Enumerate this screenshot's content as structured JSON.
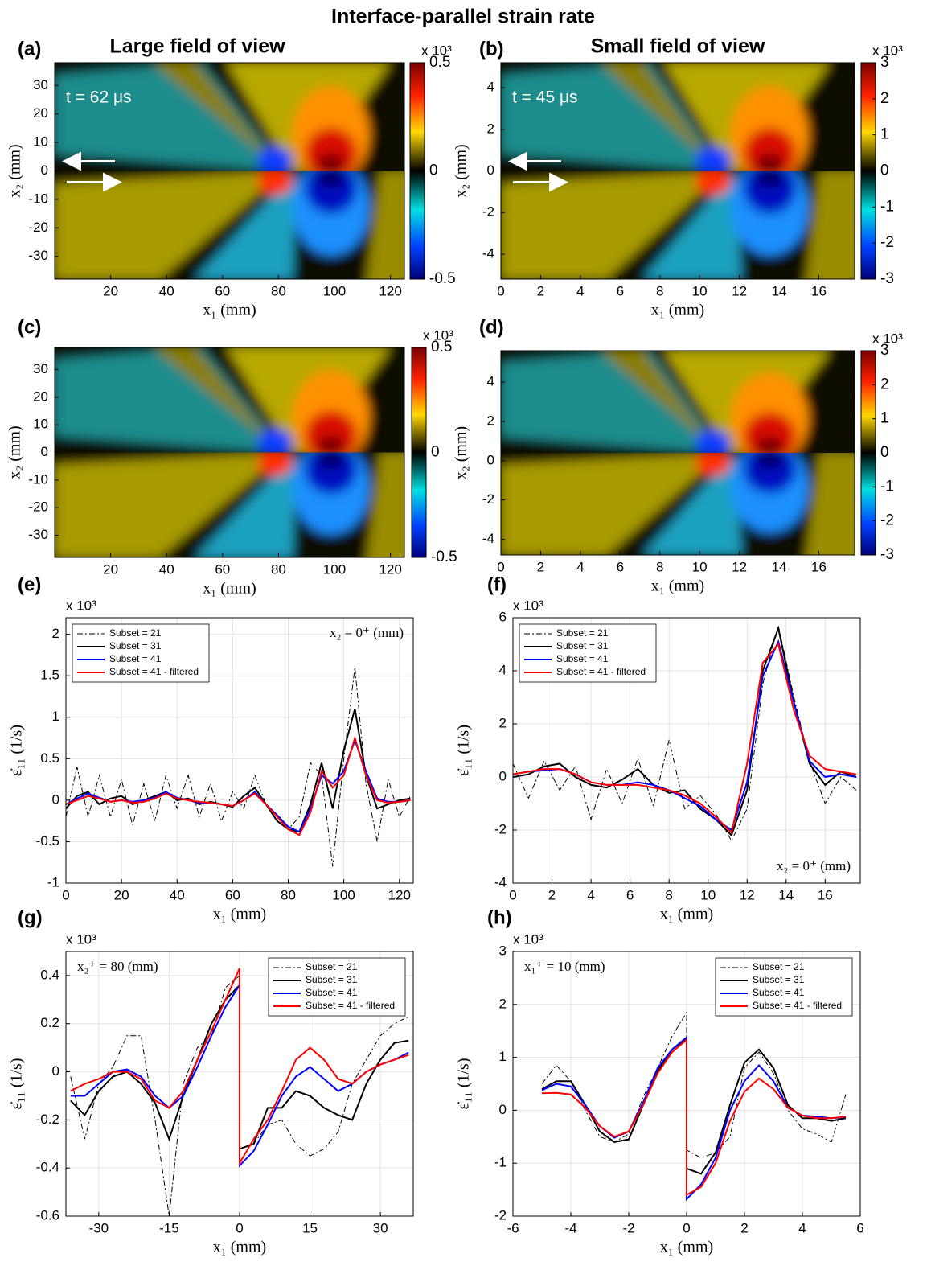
{
  "title": "Interface-parallel strain rate",
  "chart_data": [
    {
      "type": "heatmap",
      "panel": "(a)",
      "title": "Large field of view",
      "annotation": "t = 62 μs",
      "xlabel": "x₁ (mm)",
      "ylabel": "x₂ (mm)",
      "xlim": [
        0,
        125
      ],
      "xticks": [
        20,
        40,
        60,
        80,
        100,
        120
      ],
      "ylim": [
        -38,
        38
      ],
      "yticks": [
        -30,
        -20,
        -10,
        0,
        10,
        20,
        30
      ],
      "colorbar": {
        "lim": [
          -0.5,
          0.5
        ],
        "ticks": [
          -0.5,
          0,
          0.5
        ],
        "multiplier": "x 10³"
      }
    },
    {
      "type": "heatmap",
      "panel": "(b)",
      "title": "Small field of view",
      "annotation": "t = 45 μs",
      "xlabel": "x₁ (mm)",
      "ylabel": "x₂ (mm)",
      "xlim": [
        0,
        17.8
      ],
      "xticks": [
        0,
        2,
        4,
        6,
        8,
        10,
        12,
        14,
        16
      ],
      "ylim": [
        -5.2,
        5.2
      ],
      "yticks": [
        -4,
        -2,
        0,
        2,
        4
      ],
      "colorbar": {
        "lim": [
          -3,
          3
        ],
        "ticks": [
          -3,
          -2,
          -1,
          0,
          1,
          2,
          3
        ],
        "multiplier": "x 10³"
      }
    },
    {
      "type": "heatmap",
      "panel": "(c)",
      "xlabel": "x₁ (mm)",
      "ylabel": "x₂ (mm)",
      "xlim": [
        0,
        125
      ],
      "xticks": [
        20,
        40,
        60,
        80,
        100,
        120
      ],
      "ylim": [
        -38,
        38
      ],
      "yticks": [
        -30,
        -20,
        -10,
        0,
        10,
        20,
        30
      ],
      "colorbar": {
        "lim": [
          -0.5,
          0.5
        ],
        "ticks": [
          -0.5,
          0,
          0.5
        ],
        "multiplier": "x 10³"
      }
    },
    {
      "type": "heatmap",
      "panel": "(d)",
      "xlabel": "x₁ (mm)",
      "ylabel": "x₂ (mm)",
      "xlim": [
        0,
        17.8
      ],
      "xticks": [
        0,
        2,
        4,
        6,
        8,
        10,
        12,
        14,
        16
      ],
      "ylim": [
        -4.8,
        5.6
      ],
      "yticks": [
        -4,
        -2,
        0,
        2,
        4
      ],
      "colorbar": {
        "lim": [
          -3,
          3
        ],
        "ticks": [
          -3,
          -2,
          -1,
          0,
          1,
          2,
          3
        ],
        "multiplier": "x 10³"
      }
    },
    {
      "type": "line",
      "panel": "(e)",
      "xlabel": "x₁ (mm)",
      "ylabel": "ε̇₁₁ (1/s)",
      "y_multiplier": "x 10³",
      "annotation": "x₂ = 0⁺ (mm)",
      "annotation_position": "upper right",
      "legend": "upper left",
      "grid": true,
      "xlim": [
        0,
        125
      ],
      "xticks": [
        0,
        20,
        40,
        60,
        80,
        100,
        120
      ],
      "ylim": [
        -1,
        2.2
      ],
      "yticks": [
        -1,
        -0.5,
        0,
        0.5,
        1,
        1.5,
        2
      ],
      "x": [
        0,
        4,
        8,
        12,
        16,
        20,
        24,
        28,
        32,
        36,
        40,
        44,
        48,
        52,
        56,
        60,
        64,
        68,
        72,
        76,
        80,
        84,
        88,
        92,
        96,
        100,
        104,
        108,
        112,
        116,
        120,
        124
      ],
      "series": [
        {
          "name": "Subset = 21",
          "color": "#000000",
          "line_style": "dash-dot",
          "values": [
            -0.2,
            0.4,
            -0.2,
            0.3,
            -0.2,
            0.25,
            -0.3,
            0.2,
            -0.25,
            0.3,
            -0.1,
            0.3,
            -0.2,
            0.2,
            -0.25,
            0.1,
            -0.1,
            0.3,
            -0.05,
            -0.2,
            -0.35,
            -0.2,
            0.45,
            0.3,
            -0.8,
            0.5,
            1.6,
            0.2,
            -0.5,
            0.25,
            -0.2,
            0.05
          ]
        },
        {
          "name": "Subset = 31",
          "color": "#000000",
          "line_style": "solid",
          "values": [
            -0.1,
            0.05,
            0.1,
            -0.05,
            0.02,
            0.05,
            -0.05,
            0,
            0.05,
            0.1,
            0,
            0.02,
            -0.05,
            -0.02,
            -0.05,
            -0.08,
            0.05,
            0.15,
            -0.05,
            -0.25,
            -0.35,
            -0.38,
            -0.05,
            0.45,
            -0.1,
            0.6,
            1.1,
            0.3,
            -0.1,
            -0.05,
            0,
            0.02
          ]
        },
        {
          "name": "Subset = 41",
          "color": "#0000ff",
          "line_style": "solid",
          "values": [
            -0.05,
            0.02,
            0.08,
            0.03,
            -0.02,
            0,
            -0.02,
            0,
            0.03,
            0.1,
            0.03,
            0,
            -0.03,
            -0.03,
            -0.05,
            -0.07,
            0,
            0.1,
            -0.05,
            -0.18,
            -0.32,
            -0.38,
            -0.1,
            0.3,
            0.2,
            0.35,
            0.72,
            0.35,
            0.02,
            -0.02,
            -0.02,
            0
          ]
        },
        {
          "name": "Subset = 41 - filtered",
          "color": "#ff0000",
          "line_style": "solid",
          "values": [
            -0.05,
            0,
            0.05,
            0.02,
            -0.02,
            0,
            -0.03,
            -0.02,
            0.02,
            0.08,
            0.02,
            0,
            -0.02,
            -0.03,
            -0.05,
            -0.07,
            0,
            0.08,
            -0.05,
            -0.2,
            -0.35,
            -0.42,
            -0.15,
            0.35,
            0.15,
            0.3,
            0.75,
            0.3,
            0,
            -0.03,
            -0.02,
            0
          ]
        }
      ]
    },
    {
      "type": "line",
      "panel": "(f)",
      "xlabel": "x₁ (mm)",
      "ylabel": "ε̇₁₁ (1/s)",
      "y_multiplier": "x 10³",
      "annotation": "x₂ = 0⁺ (mm)",
      "annotation_position": "lower right",
      "legend": "upper left",
      "grid": true,
      "xlim": [
        0,
        17.8
      ],
      "xticks": [
        0,
        2,
        4,
        6,
        8,
        10,
        12,
        14,
        16
      ],
      "ylim": [
        -4,
        6
      ],
      "yticks": [
        -4,
        -2,
        0,
        2,
        4,
        6
      ],
      "x": [
        0,
        0.8,
        1.6,
        2.4,
        3.2,
        4,
        4.8,
        5.6,
        6.4,
        7.2,
        8,
        8.8,
        9.6,
        10.4,
        11.2,
        12,
        12.8,
        13.6,
        14.4,
        15.2,
        16,
        16.8,
        17.6
      ],
      "series": [
        {
          "name": "Subset = 21",
          "color": "#000000",
          "line_style": "dash-dot",
          "values": [
            0.5,
            -0.8,
            0.6,
            -0.5,
            0.4,
            -1.6,
            0.3,
            -1,
            0.7,
            -1.1,
            1.4,
            -1.2,
            -0.7,
            -1.4,
            -2.4,
            -1.2,
            3.5,
            5.7,
            3,
            0.6,
            -1,
            0,
            -0.5
          ]
        },
        {
          "name": "Subset = 31",
          "color": "#000000",
          "line_style": "solid",
          "values": [
            0,
            0.1,
            0.4,
            0.5,
            0,
            -0.3,
            -0.4,
            -0.1,
            0.3,
            -0.3,
            -0.6,
            -0.5,
            -1.2,
            -1.6,
            -2.2,
            -0.5,
            4,
            5.6,
            2.8,
            0.5,
            -0.3,
            0.2,
            0
          ]
        },
        {
          "name": "Subset = 41",
          "color": "#0000ff",
          "line_style": "solid",
          "values": [
            0.1,
            0.2,
            0.25,
            0.3,
            0.1,
            -0.2,
            -0.3,
            -0.3,
            -0.2,
            -0.3,
            -0.5,
            -0.8,
            -1.1,
            -1.6,
            -2,
            -0.2,
            3.8,
            5.1,
            2.8,
            0.6,
            0,
            0.1,
            0
          ]
        },
        {
          "name": "Subset = 41 - filtered",
          "color": "#ff0000",
          "line_style": "solid",
          "values": [
            0.1,
            0.2,
            0.3,
            0.3,
            0.1,
            -0.2,
            -0.3,
            -0.3,
            -0.3,
            -0.4,
            -0.5,
            -0.7,
            -1,
            -1.5,
            -2.1,
            0.5,
            4.3,
            5,
            2.5,
            0.8,
            0.3,
            0.2,
            0.1
          ]
        }
      ]
    },
    {
      "type": "line",
      "panel": "(g)",
      "xlabel": "x₁ (mm)",
      "ylabel": "ε̇₁₁ (1/s)",
      "y_multiplier": "x 10³",
      "annotation": "x₂⁺ = 80 (mm)",
      "annotation_position": "upper left",
      "legend": "upper right",
      "grid": true,
      "xlim": [
        -37,
        37
      ],
      "xticks": [
        -30,
        -15,
        0,
        15,
        30
      ],
      "ylim": [
        -0.6,
        0.5
      ],
      "yticks": [
        -0.6,
        -0.4,
        -0.2,
        0,
        0.2,
        0.4
      ],
      "x": [
        -36,
        -33,
        -30,
        -27,
        -24,
        -21,
        -18,
        -15,
        -12,
        -9,
        -6,
        -3,
        0,
        0,
        3,
        6,
        9,
        12,
        15,
        18,
        21,
        24,
        27,
        30,
        33,
        36
      ],
      "series": [
        {
          "name": "Subset = 21",
          "color": "#000000",
          "line_style": "dash-dot",
          "values": [
            -0.02,
            -0.28,
            -0.05,
            0.02,
            0.15,
            0.15,
            -0.2,
            -0.6,
            -0.05,
            0.1,
            0.15,
            0.35,
            0.4,
            -0.32,
            -0.3,
            -0.22,
            -0.2,
            -0.3,
            -0.35,
            -0.32,
            -0.25,
            -0.05,
            0.05,
            0.15,
            0.2,
            0.23
          ]
        },
        {
          "name": "Subset = 31",
          "color": "#000000",
          "line_style": "solid",
          "values": [
            -0.12,
            -0.18,
            -0.08,
            -0.02,
            0,
            -0.05,
            -0.13,
            -0.28,
            -0.1,
            0.05,
            0.2,
            0.3,
            0.36,
            -0.32,
            -0.3,
            -0.15,
            -0.15,
            -0.08,
            -0.1,
            -0.15,
            -0.18,
            -0.2,
            -0.05,
            0.05,
            0.12,
            0.13
          ]
        },
        {
          "name": "Subset = 41",
          "color": "#0000ff",
          "line_style": "solid",
          "values": [
            -0.1,
            -0.1,
            -0.05,
            0,
            0.01,
            -0.02,
            -0.1,
            -0.15,
            -0.1,
            0.02,
            0.15,
            0.27,
            0.36,
            -0.39,
            -0.33,
            -0.22,
            -0.1,
            -0.02,
            0.02,
            -0.03,
            -0.08,
            -0.05,
            0,
            0.03,
            0.05,
            0.08
          ]
        },
        {
          "name": "Subset = 41 - filtered",
          "color": "#ff0000",
          "line_style": "solid",
          "values": [
            -0.08,
            -0.05,
            -0.03,
            0,
            0,
            -0.03,
            -0.12,
            -0.15,
            -0.08,
            0.05,
            0.17,
            0.3,
            0.43,
            -0.38,
            -0.28,
            -0.2,
            -0.08,
            0.05,
            0.1,
            0.05,
            -0.03,
            -0.05,
            0,
            0.03,
            0.05,
            0.07
          ]
        }
      ]
    },
    {
      "type": "line",
      "panel": "(h)",
      "xlabel": "x₁ (mm)",
      "ylabel": "ε̇₁₁ (1/s)",
      "y_multiplier": "x 10³",
      "annotation": "x₁⁺ = 10 (mm)",
      "annotation_position": "upper left",
      "legend": "upper right",
      "grid": true,
      "xlim": [
        -6,
        6
      ],
      "xticks": [
        -6,
        -4,
        -2,
        0,
        2,
        4,
        6
      ],
      "ylim": [
        -2,
        3
      ],
      "yticks": [
        -2,
        -1,
        0,
        1,
        2,
        3
      ],
      "x": [
        -5,
        -4.5,
        -4,
        -3.5,
        -3,
        -2.5,
        -2,
        -1.5,
        -1,
        -0.5,
        0,
        0,
        0.5,
        1,
        1.5,
        2,
        2.5,
        3,
        3.5,
        4,
        4.5,
        5,
        5.5
      ],
      "series": [
        {
          "name": "Subset = 21",
          "color": "#000000",
          "line_style": "dash-dot",
          "values": [
            0.5,
            0.85,
            0.55,
            0,
            -0.5,
            -0.6,
            -0.45,
            0.25,
            0.8,
            1.4,
            1.85,
            -0.75,
            -0.9,
            -0.8,
            -0.5,
            0.8,
            1.1,
            0.7,
            0,
            -0.35,
            -0.45,
            -0.6,
            0.3
          ]
        },
        {
          "name": "Subset = 31",
          "color": "#000000",
          "line_style": "solid",
          "values": [
            0.4,
            0.55,
            0.55,
            0.1,
            -0.4,
            -0.6,
            -0.55,
            0.1,
            0.75,
            1.15,
            1.35,
            -1.1,
            -1.2,
            -0.8,
            0.1,
            0.9,
            1.15,
            0.8,
            0.1,
            -0.15,
            -0.15,
            -0.2,
            -0.15
          ]
        },
        {
          "name": "Subset = 41",
          "color": "#0000ff",
          "line_style": "solid",
          "values": [
            0.38,
            0.5,
            0.45,
            0.1,
            -0.3,
            -0.52,
            -0.4,
            0.15,
            0.8,
            1.15,
            1.38,
            -1.68,
            -1.4,
            -0.9,
            0,
            0.55,
            0.85,
            0.55,
            0.05,
            -0.1,
            -0.12,
            -0.15,
            -0.13
          ]
        },
        {
          "name": "Subset = 41 - filtered",
          "color": "#ff0000",
          "line_style": "solid",
          "values": [
            0.32,
            0.33,
            0.3,
            0.05,
            -0.3,
            -0.5,
            -0.4,
            0.1,
            0.7,
            1.1,
            1.33,
            -1.6,
            -1.45,
            -1,
            -0.2,
            0.35,
            0.6,
            0.4,
            0.05,
            -0.1,
            -0.15,
            -0.15,
            -0.12
          ]
        }
      ]
    }
  ]
}
